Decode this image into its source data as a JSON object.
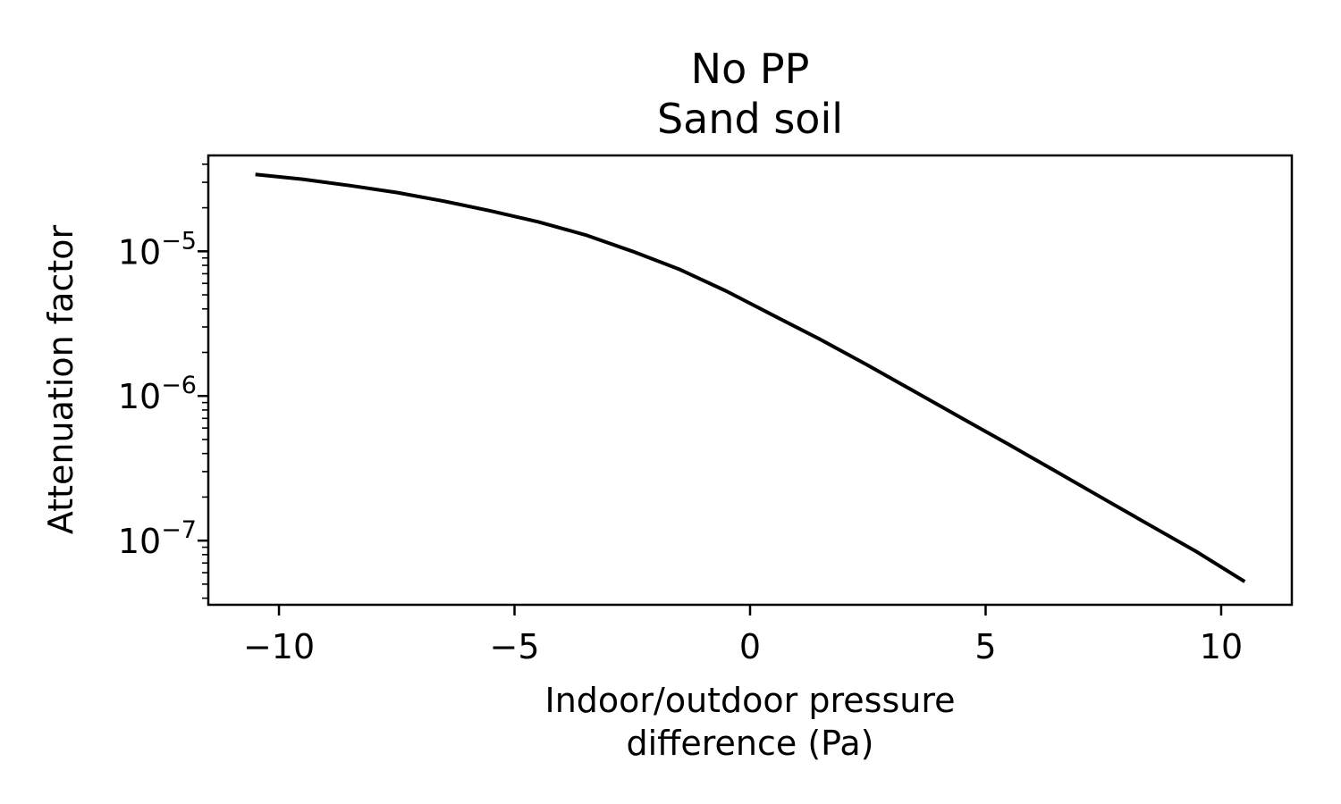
{
  "chart_data": {
    "type": "line",
    "title_line1": "No PP",
    "title_line2": "Sand soil",
    "ylabel": "Attenuation factor",
    "xlabel_line1": "Indoor/outdoor pressure",
    "xlabel_line2": "difference (Pa)",
    "xlim": [
      -11.5,
      11.5
    ],
    "ylim": [
      3.6e-08,
      4.6e-05
    ],
    "yscale": "log",
    "grid": false,
    "x_ticks": [
      {
        "value": -10,
        "label": "−10"
      },
      {
        "value": -5,
        "label": "−5"
      },
      {
        "value": 0,
        "label": "0"
      },
      {
        "value": 5,
        "label": "5"
      },
      {
        "value": 10,
        "label": "10"
      }
    ],
    "y_ticks": [
      {
        "value": 1e-05,
        "base": "10",
        "exp": "−5"
      },
      {
        "value": 1e-06,
        "base": "10",
        "exp": "−6"
      },
      {
        "value": 1e-07,
        "base": "10",
        "exp": "−7"
      }
    ],
    "series": [
      {
        "color": "#000000",
        "x": [
          -10.5,
          -9.5,
          -8.5,
          -7.5,
          -6.5,
          -5.5,
          -4.5,
          -3.5,
          -2.5,
          -1.5,
          -0.5,
          0.5,
          1.5,
          2.5,
          3.5,
          4.5,
          5.5,
          6.5,
          7.5,
          8.5,
          9.5,
          10.5
        ],
        "y": [
          3.4e-05,
          3.15e-05,
          2.85e-05,
          2.55e-05,
          2.22e-05,
          1.9e-05,
          1.6e-05,
          1.3e-05,
          1e-05,
          7.5e-06,
          5.3e-06,
          3.6e-06,
          2.45e-06,
          1.63e-06,
          1.07e-06,
          7e-07,
          4.6e-07,
          3e-07,
          1.95e-07,
          1.27e-07,
          8.3e-08,
          5.2e-08
        ]
      }
    ]
  }
}
